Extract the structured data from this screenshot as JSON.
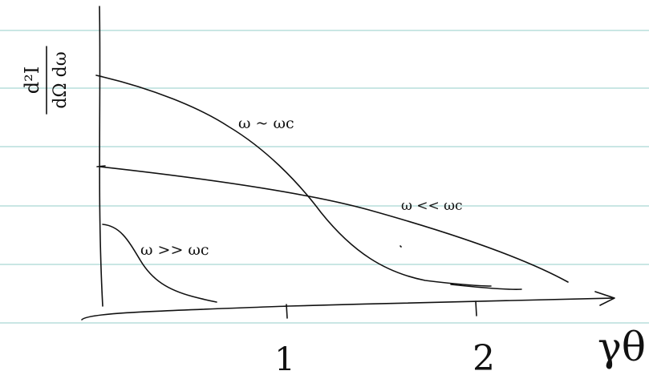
{
  "y_label": {
    "numerator": "d²I",
    "denominator": "dΩ dω"
  },
  "x_label": "γθ",
  "x_ticks": [
    "1",
    "2"
  ],
  "curves": [
    {
      "label": "ω ~ ωc"
    },
    {
      "label": "ω << ωc"
    },
    {
      "label": "ω >> ωc"
    }
  ]
}
